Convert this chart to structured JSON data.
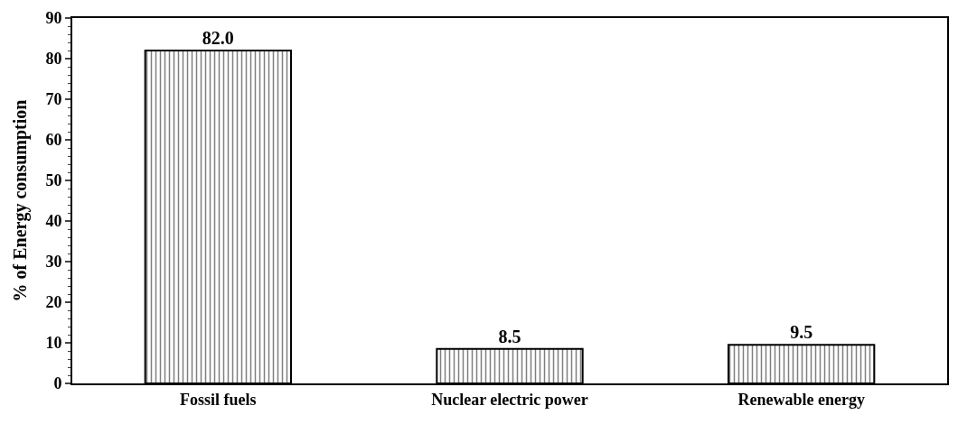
{
  "chart_data": {
    "type": "bar",
    "ylabel": "% of Energy consumption",
    "categories": [
      "Fossil fuels",
      "Nuclear electric power",
      "Renewable energy"
    ],
    "values": [
      82.0,
      8.5,
      9.5
    ],
    "value_labels": [
      "82.0",
      "8.5",
      "9.5"
    ],
    "color": "#000000",
    "ylim": [
      0,
      90
    ],
    "yticks": [
      0,
      10,
      20,
      30,
      40,
      50,
      60,
      70,
      80,
      90
    ]
  }
}
